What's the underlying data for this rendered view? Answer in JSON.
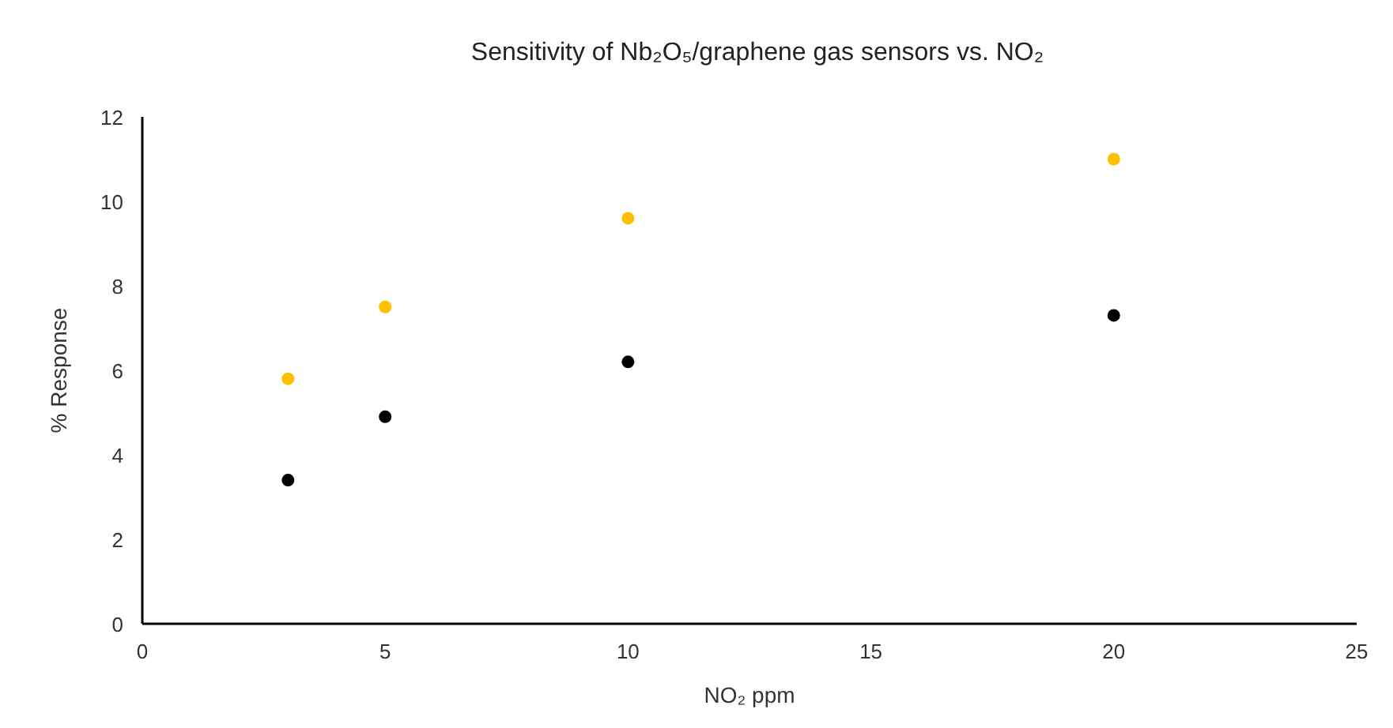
{
  "chart_data": {
    "type": "scatter",
    "title": "Sensitivity of Nb₂O₅/graphene gas sensors vs. NO₂",
    "xlabel": "NO₂ ppm",
    "ylabel": "% Response",
    "x": [
      3,
      5,
      10,
      20
    ],
    "series": [
      {
        "color": "#ffc000",
        "values": [
          5.8,
          7.5,
          9.6,
          11.0
        ]
      },
      {
        "color": "#000000",
        "values": [
          3.4,
          4.9,
          6.2,
          7.3
        ]
      }
    ],
    "xlim": [
      0,
      25
    ],
    "xticks": [
      0,
      5,
      10,
      15,
      20,
      25
    ],
    "ylim": [
      0,
      12
    ],
    "yticks": [
      0,
      2,
      4,
      6,
      8,
      10,
      12
    ],
    "marker": "circle"
  }
}
